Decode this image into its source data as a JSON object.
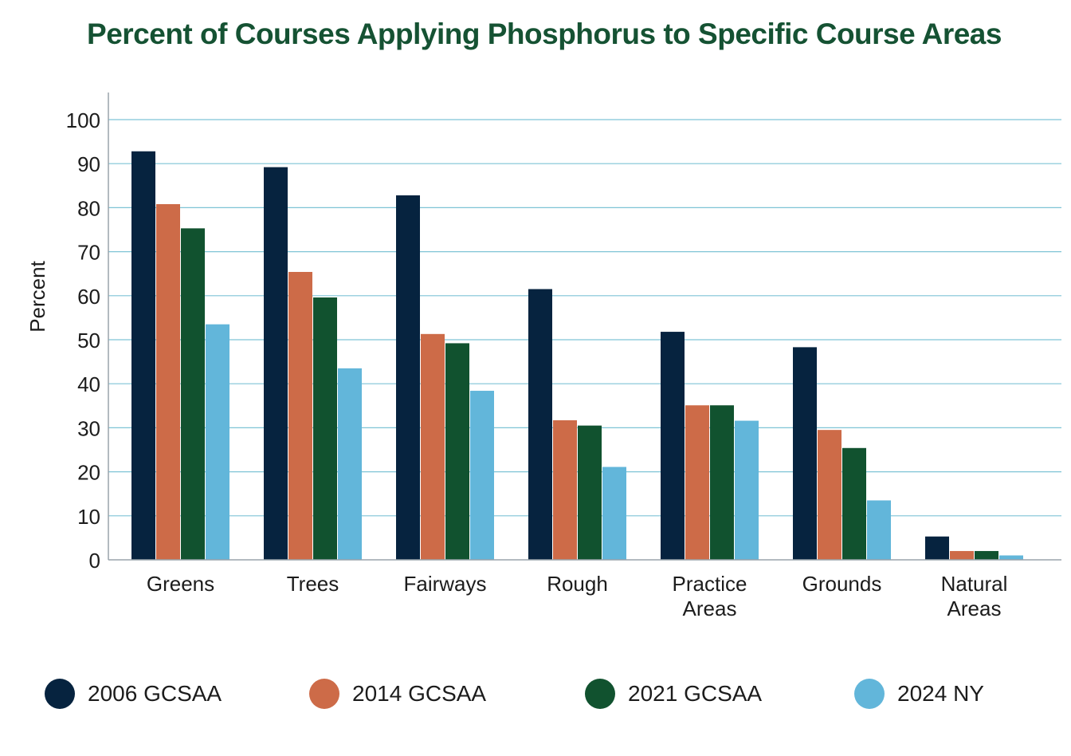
{
  "chart_data": {
    "type": "bar",
    "title": "Percent of Courses Applying Phosphorus to Specific Course Areas",
    "xlabel": "",
    "ylabel": "Percent",
    "ylim": [
      0,
      100
    ],
    "yticks": [
      0,
      10,
      20,
      30,
      40,
      50,
      60,
      70,
      80,
      90,
      100
    ],
    "grid": true,
    "legend_position": "bottom",
    "categories": [
      "Greens",
      "Trees",
      "Fairways",
      "Rough",
      "Practice Areas",
      "Grounds",
      "Natural Areas"
    ],
    "category_lines": [
      [
        "Greens"
      ],
      [
        "Trees"
      ],
      [
        "Fairways"
      ],
      [
        "Rough"
      ],
      [
        "Practice",
        "Areas"
      ],
      [
        "Grounds"
      ],
      [
        "Natural",
        "Areas"
      ]
    ],
    "series": [
      {
        "name": "2006 GCSAA",
        "color": "#06233f",
        "values": [
          92.8,
          89.2,
          82.8,
          61.5,
          51.8,
          48.3,
          5.3
        ]
      },
      {
        "name": "2014 GCSAA",
        "color": "#cd6b48",
        "values": [
          80.8,
          65.4,
          51.3,
          31.7,
          35.1,
          29.5,
          2.0
        ]
      },
      {
        "name": "2021 GCSAA",
        "color": "#11522f",
        "values": [
          75.3,
          59.6,
          49.2,
          30.5,
          35.1,
          25.4,
          2.0
        ]
      },
      {
        "name": "2024 NY",
        "color": "#62b6da",
        "values": [
          53.5,
          43.5,
          38.4,
          21.1,
          31.6,
          13.5,
          1.0
        ]
      }
    ]
  },
  "colors": {
    "title": "#155233",
    "grid": "#7fc4d6",
    "axis": "#9aa4ab",
    "text": "#1c1c1c"
  }
}
